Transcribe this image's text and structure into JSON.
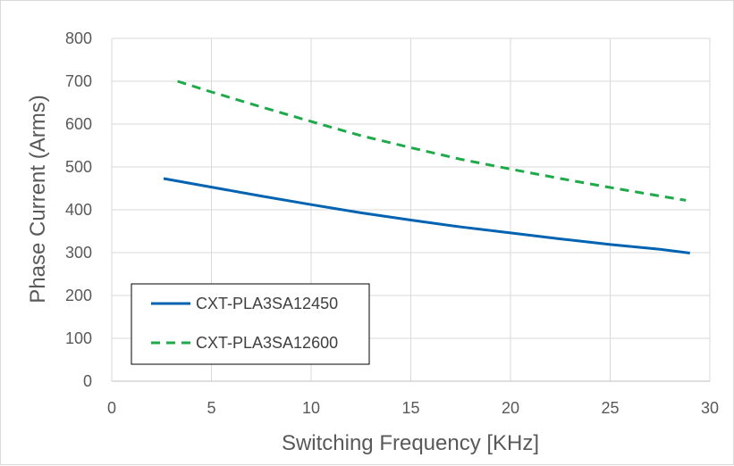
{
  "chart_data": {
    "type": "line",
    "title": "",
    "xlabel": "Switching Frequency [KHz]",
    "ylabel": "Phase Current (Arms)",
    "xlim": [
      0,
      30
    ],
    "ylim": [
      0,
      800
    ],
    "xticks": [
      "0",
      "5",
      "10",
      "15",
      "20",
      "25",
      "30"
    ],
    "yticks": [
      "0",
      "100",
      "200",
      "300",
      "400",
      "500",
      "600",
      "700",
      "800"
    ],
    "grid": true,
    "legend_position": "bottom-left",
    "series": [
      {
        "name": "CXT-PLA3SA12450",
        "color": "#0063b1",
        "style": "solid",
        "x": [
          2.6,
          5,
          7.5,
          10,
          12.5,
          15,
          17.5,
          20,
          22.5,
          25,
          27.5,
          29
        ],
        "y": [
          473,
          453,
          432,
          412,
          393,
          376,
          360,
          346,
          332,
          319,
          308,
          299
        ]
      },
      {
        "name": "CXT-PLA3SA12600",
        "color": "#1faa4a",
        "style": "dashed",
        "x": [
          3.3,
          5,
          7.5,
          10,
          12.5,
          15,
          17.5,
          20,
          22.5,
          25,
          27.5,
          28.8
        ],
        "y": [
          700,
          675,
          640,
          606,
          573,
          545,
          518,
          495,
          473,
          452,
          432,
          422
        ]
      }
    ]
  }
}
